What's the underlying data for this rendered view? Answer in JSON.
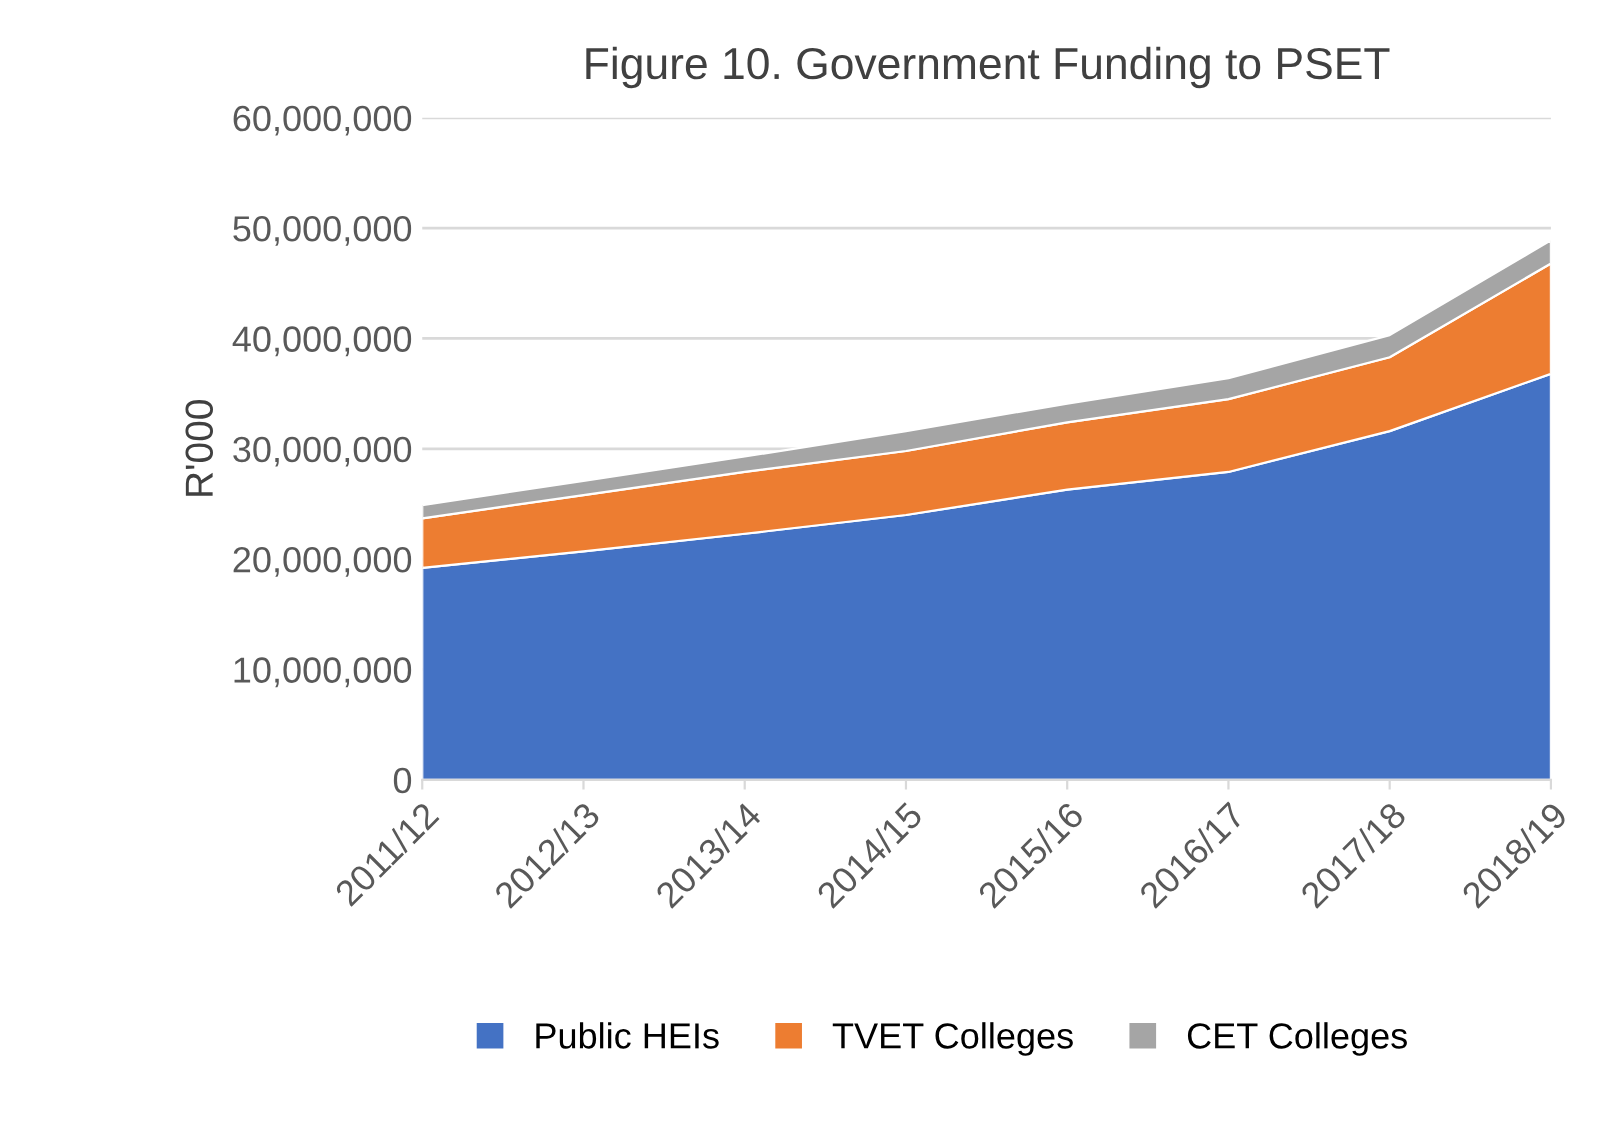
{
  "chart_data": {
    "type": "area",
    "stacked": true,
    "title": "Figure 10. Government Funding to PSET",
    "ylabel": "R'000",
    "categories": [
      "2011/12",
      "2012/13",
      "2013/14",
      "2014/15",
      "2015/16",
      "2016/17",
      "2017/18",
      "2018/19"
    ],
    "series": [
      {
        "name": "Public HEIs",
        "color": "#4472c4",
        "values": [
          19200000,
          20700000,
          22300000,
          24000000,
          26300000,
          27900000,
          31600000,
          36800000
        ]
      },
      {
        "name": "TVET Colleges",
        "color": "#ed7d31",
        "values": [
          4500000,
          5100000,
          5600000,
          5800000,
          6100000,
          6600000,
          6700000,
          10000000
        ]
      },
      {
        "name": "CET Colleges",
        "color": "#a5a5a5",
        "values": [
          1200000,
          1300000,
          1400000,
          1800000,
          1700000,
          1900000,
          2000000,
          2100000
        ]
      }
    ],
    "ylim": [
      0,
      60000000
    ],
    "yticks": [
      {
        "value": 0,
        "label": "0"
      },
      {
        "value": 10000000,
        "label": "10,000,000"
      },
      {
        "value": 20000000,
        "label": "20,000,000"
      },
      {
        "value": 30000000,
        "label": "30,000,000"
      },
      {
        "value": 40000000,
        "label": "40,000,000"
      },
      {
        "value": 50000000,
        "label": "50,000,000"
      },
      {
        "value": 60000000,
        "label": "60,000,000"
      }
    ],
    "grid": "y",
    "legend": "bottom"
  }
}
